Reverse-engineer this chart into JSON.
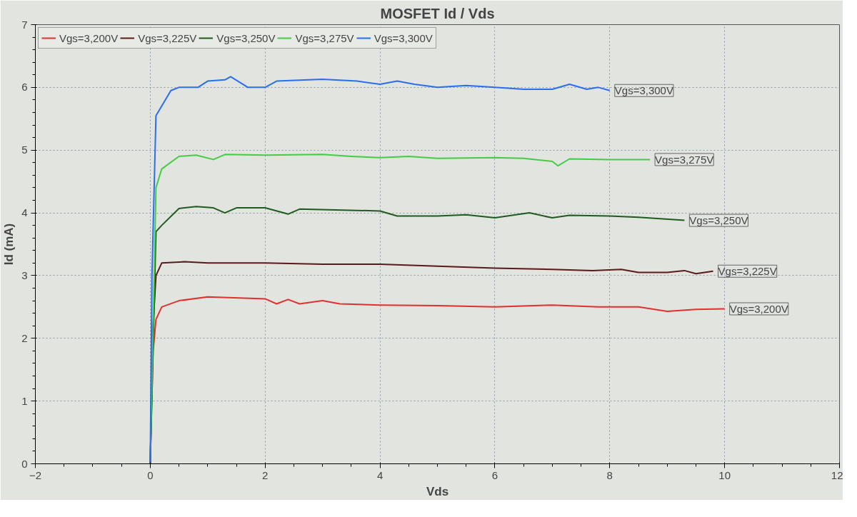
{
  "chart_data": {
    "type": "line",
    "title": "MOSFET Id / Vds",
    "xlabel": "Vds",
    "ylabel": "Id (mA)",
    "xlim": [
      -2,
      12
    ],
    "xticks": [
      -2,
      0,
      2,
      4,
      6,
      8,
      10,
      12
    ],
    "ylim": [
      0,
      7
    ],
    "yticks": [
      0,
      1,
      2,
      3,
      4,
      5,
      6,
      7
    ],
    "grid": true,
    "legend": "top left",
    "line_style": "solid",
    "series": [
      {
        "name": "Vgs=3,200V",
        "color": "#e03030",
        "x": [
          0,
          0.05,
          0.1,
          0.2,
          0.5,
          1,
          2,
          2.2,
          2.4,
          2.6,
          3,
          3.3,
          4,
          5,
          6,
          7,
          7.8,
          8.5,
          9,
          9.5,
          10
        ],
        "values": [
          0,
          1.8,
          2.3,
          2.5,
          2.6,
          2.66,
          2.63,
          2.55,
          2.62,
          2.55,
          2.6,
          2.55,
          2.53,
          2.52,
          2.5,
          2.53,
          2.5,
          2.5,
          2.43,
          2.46,
          2.47
        ]
      },
      {
        "name": "Vgs=3,225V",
        "color": "#5a1a1a",
        "x": [
          0,
          0.05,
          0.1,
          0.2,
          0.6,
          1,
          2,
          3,
          4,
          5,
          6,
          7,
          7.7,
          8.2,
          8.5,
          9,
          9.3,
          9.5,
          9.8
        ],
        "values": [
          0,
          2.2,
          3.0,
          3.2,
          3.22,
          3.2,
          3.2,
          3.18,
          3.18,
          3.15,
          3.12,
          3.1,
          3.08,
          3.1,
          3.05,
          3.05,
          3.08,
          3.03,
          3.07
        ]
      },
      {
        "name": "Vgs=3,250V",
        "color": "#1f5a1f",
        "x": [
          0,
          0.1,
          0.2,
          0.5,
          0.8,
          1.1,
          1.3,
          1.5,
          2,
          2.4,
          2.6,
          4,
          4.3,
          5,
          5.5,
          6,
          6.6,
          7,
          7.3,
          8,
          8.5,
          9.3
        ],
        "values": [
          0,
          3.7,
          3.8,
          4.07,
          4.1,
          4.08,
          4.0,
          4.08,
          4.08,
          3.98,
          4.06,
          4.03,
          3.95,
          3.95,
          3.97,
          3.92,
          4.0,
          3.92,
          3.96,
          3.95,
          3.93,
          3.88
        ]
      },
      {
        "name": "Vgs=3,275V",
        "color": "#44cc44",
        "x": [
          0,
          0.1,
          0.2,
          0.5,
          0.8,
          1.1,
          1.3,
          2,
          3,
          3.5,
          4,
          4.5,
          5,
          6,
          6.5,
          7,
          7.1,
          7.3,
          8,
          8.7
        ],
        "values": [
          0,
          4.4,
          4.7,
          4.9,
          4.92,
          4.85,
          4.93,
          4.92,
          4.93,
          4.9,
          4.88,
          4.9,
          4.87,
          4.88,
          4.87,
          4.82,
          4.75,
          4.86,
          4.85,
          4.85
        ]
      },
      {
        "name": "Vgs=3,300V",
        "color": "#2a6df0",
        "x": [
          0,
          0.03,
          0.1,
          0.36,
          0.5,
          0.83,
          1,
          1.3,
          1.4,
          1.7,
          2,
          2.2,
          3,
          3.6,
          4,
          4.3,
          4.6,
          5,
          5.5,
          6,
          6.5,
          7,
          7.3,
          7.6,
          7.8,
          8
        ],
        "values": [
          0,
          3,
          5.55,
          5.95,
          6.0,
          6.0,
          6.1,
          6.12,
          6.17,
          6.0,
          6.0,
          6.1,
          6.13,
          6.1,
          6.05,
          6.1,
          6.05,
          6.0,
          6.03,
          6.0,
          5.97,
          5.97,
          6.05,
          5.97,
          6.0,
          5.95
        ]
      }
    ]
  }
}
